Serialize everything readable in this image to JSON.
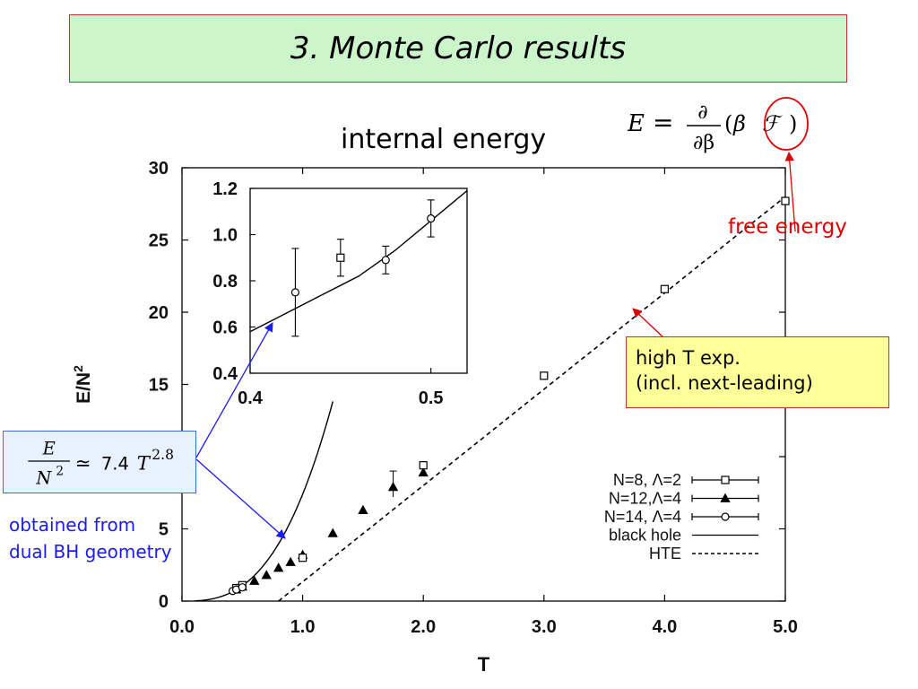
{
  "slide": {
    "title": "3. Monte Carlo results",
    "subtitle": "internal energy",
    "equation": {
      "lhs": "E",
      "eq": "=",
      "numerator": "∂",
      "denominator": "∂β",
      "paren_open": "(",
      "beta": "β",
      "F": "ℱ",
      "paren_close": ")"
    },
    "free_energy_label": "free energy",
    "hte_note": {
      "line1": "high T exp.",
      "line2": "(incl. next-leading)"
    },
    "scaling": {
      "num": "E",
      "den": "N",
      "den_exp": "2",
      "rel": "≃",
      "coef": "7.4",
      "var": "T",
      "exp": "2.8"
    },
    "obtained_note": {
      "line1": "obtained from",
      "line2": "dual BH geometry"
    }
  },
  "colors": {
    "title_bg": "#ccf5cc",
    "title_border": "#c03030",
    "note_bg": "#ffff99",
    "red": "#e00000",
    "blue": "#1a1aff",
    "scaling_bg": "#e8f1ff"
  },
  "chart_data": [
    {
      "type": "scatter",
      "xlabel": "T",
      "ylabel": "E/N",
      "ylabel_exp": "2",
      "xlim": [
        0,
        5
      ],
      "ylim": [
        0,
        30
      ],
      "x_ticks": [
        "0.0",
        "1.0",
        "2.0",
        "3.0",
        "4.0",
        "5.0"
      ],
      "y_ticks": [
        "0",
        "5",
        "10",
        "15",
        "20",
        "25",
        "30"
      ],
      "legend_position": "bottom-right",
      "series": [
        {
          "name": "N=8, Λ=2",
          "marker": "square",
          "points": [
            [
              0.45,
              0.9
            ],
            [
              0.5,
              1.1
            ],
            [
              1.0,
              3.0
            ],
            [
              2.0,
              9.4
            ],
            [
              3.0,
              15.6
            ],
            [
              4.0,
              21.6
            ],
            [
              5.0,
              27.7
            ]
          ]
        },
        {
          "name": "N=12,Λ=4",
          "marker": "triangle",
          "points": [
            [
              0.45,
              0.8
            ],
            [
              0.5,
              1.0
            ],
            [
              0.6,
              1.4
            ],
            [
              0.7,
              1.8
            ],
            [
              0.8,
              2.3
            ],
            [
              0.9,
              2.7
            ],
            [
              1.0,
              3.2
            ],
            [
              1.25,
              4.7
            ],
            [
              1.5,
              6.3
            ],
            [
              1.75,
              7.9
            ],
            [
              2.0,
              8.9
            ]
          ]
        },
        {
          "name": "N=14, Λ=4",
          "marker": "circle",
          "points": [
            [
              0.42,
              0.7
            ],
            [
              0.45,
              0.8
            ],
            [
              0.5,
              0.95
            ]
          ]
        },
        {
          "name": "black hole",
          "style": "solid",
          "formula": "7.4*T^2.8",
          "x_range": [
            0,
            1.25
          ]
        },
        {
          "name": "HTE",
          "style": "dashed",
          "points": [
            [
              0.8,
              0.0
            ],
            [
              5.0,
              28.0
            ]
          ]
        }
      ],
      "inset": {
        "xlim": [
          0.4,
          0.52
        ],
        "ylim": [
          0.4,
          1.2
        ],
        "x_ticks": [
          "0.4",
          "0.5"
        ],
        "y_ticks": [
          "0.4",
          "0.6",
          "0.8",
          "1.0",
          "1.2"
        ],
        "points": [
          {
            "x": 0.425,
            "y": 0.75,
            "yerr": 0.19,
            "marker": "circle"
          },
          {
            "x": 0.45,
            "y": 0.9,
            "yerr": 0.08,
            "marker": "square"
          },
          {
            "x": 0.475,
            "y": 0.89,
            "yerr": 0.06,
            "marker": "circle"
          },
          {
            "x": 0.5,
            "y": 1.07,
            "yerr": 0.08,
            "marker": "circle"
          }
        ],
        "curve": "7.4*T^2.8"
      }
    }
  ]
}
